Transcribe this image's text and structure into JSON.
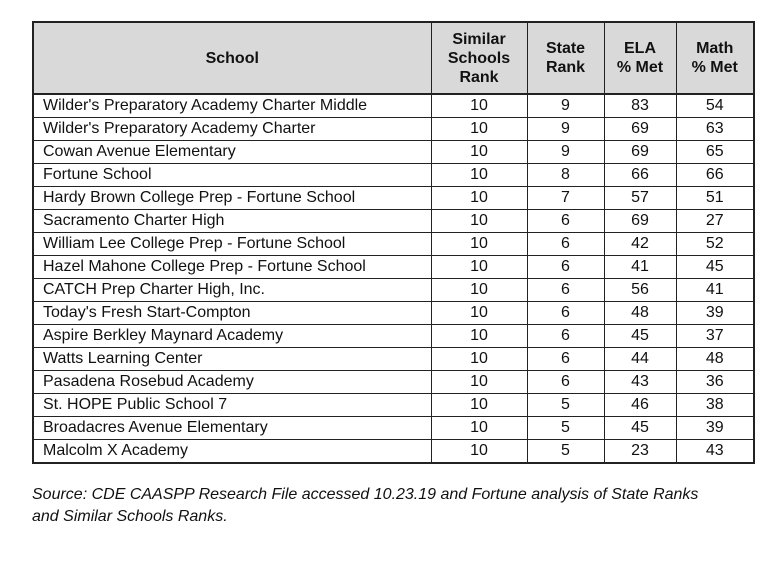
{
  "table": {
    "headers": [
      "School",
      "Similar Schools Rank",
      "State Rank",
      "ELA % Met",
      "Math % Met"
    ],
    "header_lines": [
      [
        "School"
      ],
      [
        "Similar",
        "Schools",
        "Rank"
      ],
      [
        "State",
        "Rank"
      ],
      [
        "ELA",
        "% Met"
      ],
      [
        "Math",
        "% Met"
      ]
    ],
    "rows": [
      [
        "Wilder's Preparatory Academy Charter Middle",
        "10",
        "9",
        "83",
        "54"
      ],
      [
        "Wilder's Preparatory Academy Charter",
        "10",
        "9",
        "69",
        "63"
      ],
      [
        "Cowan Avenue Elementary",
        "10",
        "9",
        "69",
        "65"
      ],
      [
        "Fortune School",
        "10",
        "8",
        "66",
        "66"
      ],
      [
        "Hardy Brown College Prep - Fortune School",
        "10",
        "7",
        "57",
        "51"
      ],
      [
        "Sacramento Charter High",
        "10",
        "6",
        "69",
        "27"
      ],
      [
        "William Lee College Prep - Fortune School",
        "10",
        "6",
        "42",
        "52"
      ],
      [
        "Hazel Mahone College Prep - Fortune School",
        "10",
        "6",
        "41",
        "45"
      ],
      [
        "CATCH Prep Charter High, Inc.",
        "10",
        "6",
        "56",
        "41"
      ],
      [
        "Today's Fresh Start-Compton",
        "10",
        "6",
        "48",
        "39"
      ],
      [
        "Aspire Berkley Maynard Academy",
        "10",
        "6",
        "45",
        "37"
      ],
      [
        "Watts Learning Center",
        "10",
        "6",
        "44",
        "48"
      ],
      [
        "Pasadena Rosebud Academy",
        "10",
        "6",
        "43",
        "36"
      ],
      [
        "St. HOPE Public School 7",
        "10",
        "5",
        "46",
        "38"
      ],
      [
        "Broadacres Avenue Elementary",
        "10",
        "5",
        "45",
        "39"
      ],
      [
        "Malcolm X Academy",
        "10",
        "5",
        "23",
        "43"
      ]
    ],
    "header_bg": "#d9d9d9"
  },
  "source_lines": [
    "Source: CDE CAASPP Research File accessed 10.23.19 and Fortune analysis of State Ranks",
    "and Similar Schools Ranks."
  ]
}
